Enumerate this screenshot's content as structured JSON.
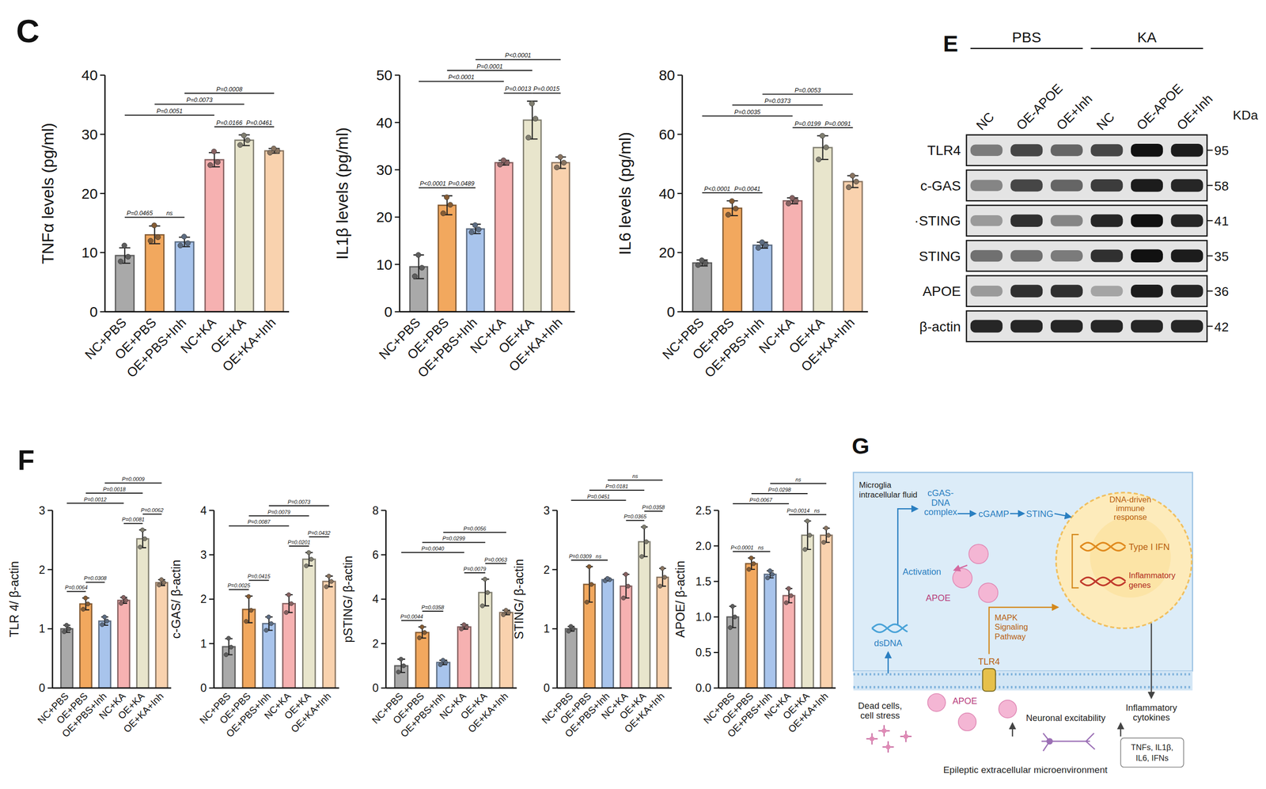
{
  "chart_data": [
    {
      "type": "bar",
      "panel": "C",
      "y_label": "TNFα levels (pg/ml)",
      "categories": [
        "NC+PBS",
        "OE+PBS",
        "OE+PBS+Inh",
        "NC+KA",
        "OE+KA",
        "OE+KA+Inh"
      ],
      "values": [
        9.5,
        13,
        11.8,
        25.7,
        29,
        27.2
      ],
      "errors": [
        1.3,
        1.5,
        0.8,
        1.2,
        0.9,
        0.4
      ],
      "points": [
        [
          8.5,
          9.3,
          11.2
        ],
        [
          12,
          12.6,
          14.6
        ],
        [
          11.2,
          11.6,
          12.7
        ],
        [
          24.8,
          25.3,
          27.1
        ],
        [
          28.2,
          29,
          29.8
        ],
        [
          26.9,
          27.2,
          27.6
        ]
      ],
      "colors": [
        "#a9a9a9",
        "#f2a85e",
        "#a8c4ec",
        "#f6b1b1",
        "#e8e5cc",
        "#f9d2ae"
      ],
      "ylim": [
        0,
        40
      ],
      "yticks": [
        0,
        10,
        20,
        30,
        40
      ],
      "comparisons": [
        {
          "pair": [
            0,
            1
          ],
          "label": "P=0.0465"
        },
        {
          "pair": [
            1,
            2
          ],
          "label": "ns"
        },
        {
          "pair": [
            3,
            4
          ],
          "label": "P=0.0166"
        },
        {
          "pair": [
            4,
            5
          ],
          "label": "P=0.0461"
        },
        {
          "pair": [
            0,
            3
          ],
          "label": "P=0.0051"
        },
        {
          "pair": [
            1,
            4
          ],
          "label": "P=0.0073"
        },
        {
          "pair": [
            2,
            5
          ],
          "label": "P=0.0008"
        }
      ]
    },
    {
      "type": "bar",
      "y_label": "IL1β levels (pg/ml)",
      "categories": [
        "NC+PBS",
        "OE+PBS",
        "OE+PBS+Inh",
        "NC+KA",
        "OE+KA",
        "OE+KA+Inh"
      ],
      "values": [
        9.5,
        22.5,
        17.5,
        31.5,
        40.5,
        31.5
      ],
      "errors": [
        2.5,
        2,
        1,
        0.5,
        4,
        1.2
      ],
      "points": [
        [
          7.5,
          9.3,
          12
        ],
        [
          20.8,
          22.6,
          24.2
        ],
        [
          16.8,
          17.4,
          18.3
        ],
        [
          31.1,
          31.5,
          32
        ],
        [
          36.8,
          40.8,
          44
        ],
        [
          30.5,
          31.5,
          32.7
        ]
      ],
      "colors": [
        "#a9a9a9",
        "#f2a85e",
        "#a8c4ec",
        "#f6b1b1",
        "#e8e5cc",
        "#f9d2ae"
      ],
      "ylim": [
        0,
        50
      ],
      "yticks": [
        0,
        10,
        20,
        30,
        40,
        50
      ],
      "comparisons": [
        {
          "pair": [
            0,
            1
          ],
          "label": "P<0.0001"
        },
        {
          "pair": [
            1,
            2
          ],
          "label": "P=0.0489"
        },
        {
          "pair": [
            3,
            4
          ],
          "label": "P=0.0013"
        },
        {
          "pair": [
            4,
            5
          ],
          "label": "P=0.0015"
        },
        {
          "pair": [
            0,
            3
          ],
          "label": "P<0.0001"
        },
        {
          "pair": [
            1,
            4
          ],
          "label": "P=0.0001"
        },
        {
          "pair": [
            2,
            5
          ],
          "label": "P<0.0001"
        }
      ]
    },
    {
      "type": "bar",
      "y_label": "IL6 levels (pg/ml)",
      "categories": [
        "NC+PBS",
        "OE+PBS",
        "OE+PBS+Inh",
        "NC+KA",
        "OE+KA",
        "OE+KA+Inh"
      ],
      "values": [
        16.5,
        35,
        22.5,
        37.5,
        55.5,
        44
      ],
      "errors": [
        1,
        2.5,
        1,
        1,
        4,
        2
      ],
      "points": [
        [
          15.8,
          16.5,
          17.4
        ],
        [
          32.8,
          34.9,
          37.4
        ],
        [
          21.6,
          22.5,
          23.5
        ],
        [
          36.6,
          37.5,
          38.5
        ],
        [
          51.5,
          55.6,
          59.5
        ],
        [
          42.1,
          44,
          46
        ]
      ],
      "colors": [
        "#a9a9a9",
        "#f2a85e",
        "#a8c4ec",
        "#f6b1b1",
        "#e8e5cc",
        "#f9d2ae"
      ],
      "ylim": [
        0,
        80
      ],
      "yticks": [
        0,
        20,
        40,
        60,
        80
      ],
      "comparisons": [
        {
          "pair": [
            0,
            1
          ],
          "label": "P<0.0001"
        },
        {
          "pair": [
            1,
            2
          ],
          "label": "P=0.0041"
        },
        {
          "pair": [
            3,
            4
          ],
          "label": "P=0.0199"
        },
        {
          "pair": [
            4,
            5
          ],
          "label": "P=0.0091"
        },
        {
          "pair": [
            0,
            3
          ],
          "label": "P=0.0035"
        },
        {
          "pair": [
            1,
            4
          ],
          "label": "P=0.0373"
        },
        {
          "pair": [
            2,
            5
          ],
          "label": "P=0.0053"
        }
      ]
    },
    {
      "type": "bar",
      "panel": "F",
      "y_label": "TLR 4/ β-actin",
      "categories": [
        "NC+PBS",
        "OE+PBS",
        "OE+PBS+Inh",
        "NC+KA",
        "OE+KA",
        "OE+KA+Inh"
      ],
      "values": [
        1.0,
        1.42,
        1.13,
        1.48,
        2.52,
        1.78
      ],
      "errors": [
        0.06,
        0.1,
        0.07,
        0.05,
        0.15,
        0.05
      ],
      "points": [
        [
          0.95,
          1,
          1.06
        ],
        [
          1.33,
          1.42,
          1.52
        ],
        [
          1.07,
          1.13,
          1.2
        ],
        [
          1.43,
          1.48,
          1.53
        ],
        [
          2.38,
          2.52,
          2.67
        ],
        [
          1.74,
          1.78,
          1.83
        ]
      ],
      "colors": [
        "#a9a9a9",
        "#f2a85e",
        "#a8c4ec",
        "#f6b1b1",
        "#e8e5cc",
        "#f9d2ae"
      ],
      "ylim": [
        0,
        3
      ],
      "yticks": [
        0,
        1,
        2,
        3
      ],
      "comparisons": [
        {
          "pair": [
            0,
            1
          ],
          "label": "P=0.0064"
        },
        {
          "pair": [
            1,
            2
          ],
          "label": "P=0.0308"
        },
        {
          "pair": [
            3,
            4
          ],
          "label": "P=0.0081"
        },
        {
          "pair": [
            4,
            5
          ],
          "label": "P=0.0062"
        },
        {
          "pair": [
            0,
            3
          ],
          "label": "P=0.0012"
        },
        {
          "pair": [
            1,
            4
          ],
          "label": "P=0.0018"
        },
        {
          "pair": [
            2,
            5
          ],
          "label": "P=0.0009"
        }
      ]
    },
    {
      "type": "bar",
      "y_label": "c-GAS/ β-actin",
      "categories": [
        "NC+PBS",
        "OE+PBS",
        "OE+PBS+Inh",
        "NC+KA",
        "OE+KA",
        "OE+KA+Inh"
      ],
      "values": [
        0.93,
        1.77,
        1.45,
        1.9,
        2.9,
        2.4
      ],
      "errors": [
        0.18,
        0.3,
        0.15,
        0.2,
        0.15,
        0.12
      ],
      "points": [
        [
          0.75,
          0.92,
          1.12
        ],
        [
          1.5,
          1.75,
          2.06
        ],
        [
          1.3,
          1.45,
          1.6
        ],
        [
          1.7,
          1.9,
          2.1
        ],
        [
          2.75,
          2.9,
          3.05
        ],
        [
          2.28,
          2.4,
          2.52
        ]
      ],
      "colors": [
        "#a9a9a9",
        "#f2a85e",
        "#a8c4ec",
        "#f6b1b1",
        "#e8e5cc",
        "#f9d2ae"
      ],
      "ylim": [
        0,
        4
      ],
      "yticks": [
        0,
        1,
        2,
        3,
        4
      ],
      "comparisons": [
        {
          "pair": [
            0,
            1
          ],
          "label": "P=0.0025"
        },
        {
          "pair": [
            1,
            2
          ],
          "label": "P=0.0415"
        },
        {
          "pair": [
            3,
            4
          ],
          "label": "P=0.0201"
        },
        {
          "pair": [
            4,
            5
          ],
          "label": "P=0.0432"
        },
        {
          "pair": [
            0,
            3
          ],
          "label": "P=0.0087"
        },
        {
          "pair": [
            1,
            4
          ],
          "label": "P=0.0079"
        },
        {
          "pair": [
            2,
            5
          ],
          "label": "P=0.0073"
        }
      ]
    },
    {
      "type": "bar",
      "y_label": "pSTING/ β-actin",
      "categories": [
        "NC+PBS",
        "OE+PBS",
        "OE+PBS+Inh",
        "NC+KA",
        "OE+KA",
        "OE+KA+Inh"
      ],
      "values": [
        1.0,
        2.5,
        1.15,
        2.75,
        4.3,
        3.4
      ],
      "errors": [
        0.3,
        0.25,
        0.1,
        0.1,
        0.6,
        0.1
      ],
      "points": [
        [
          0.72,
          1,
          1.3
        ],
        [
          2.26,
          2.5,
          2.75
        ],
        [
          1.05,
          1.15,
          1.25
        ],
        [
          2.66,
          2.75,
          2.85
        ],
        [
          3.7,
          4.3,
          4.9
        ],
        [
          3.3,
          3.4,
          3.5
        ]
      ],
      "colors": [
        "#a9a9a9",
        "#f2a85e",
        "#a8c4ec",
        "#f6b1b1",
        "#e8e5cc",
        "#f9d2ae"
      ],
      "ylim": [
        0,
        8
      ],
      "yticks": [
        0,
        2,
        4,
        6,
        8
      ],
      "comparisons": [
        {
          "pair": [
            0,
            1
          ],
          "label": "P=0.0044"
        },
        {
          "pair": [
            1,
            2
          ],
          "label": "P=0.0358"
        },
        {
          "pair": [
            3,
            4
          ],
          "label": "P=0.0079"
        },
        {
          "pair": [
            4,
            5
          ],
          "label": "P=0.0063"
        },
        {
          "pair": [
            0,
            3
          ],
          "label": "P=0.0040"
        },
        {
          "pair": [
            1,
            4
          ],
          "label": "P=0.0299"
        },
        {
          "pair": [
            2,
            5
          ],
          "label": "P=0.0056"
        }
      ]
    },
    {
      "type": "bar",
      "y_label": "STING/ β-actin",
      "categories": [
        "NC+PBS",
        "OE+PBS",
        "OE+PBS+Inh",
        "NC+KA",
        "OE+KA",
        "OE+KA+Inh"
      ],
      "values": [
        1.0,
        1.75,
        1.83,
        1.72,
        2.47,
        1.87
      ],
      "errors": [
        0.04,
        0.3,
        0.02,
        0.2,
        0.25,
        0.15
      ],
      "points": [
        [
          0.96,
          1,
          1.04
        ],
        [
          1.45,
          1.75,
          2.05
        ],
        [
          1.81,
          1.83,
          1.85
        ],
        [
          1.52,
          1.72,
          1.92
        ],
        [
          2.22,
          2.47,
          2.72
        ],
        [
          1.72,
          1.87,
          2.02
        ]
      ],
      "colors": [
        "#a9a9a9",
        "#f2a85e",
        "#a8c4ec",
        "#f6b1b1",
        "#e8e5cc",
        "#f9d2ae"
      ],
      "ylim": [
        0,
        3
      ],
      "yticks": [
        0,
        1,
        2,
        3
      ],
      "comparisons": [
        {
          "pair": [
            0,
            1
          ],
          "label": "P=0.0309"
        },
        {
          "pair": [
            1,
            2
          ],
          "label": "ns"
        },
        {
          "pair": [
            3,
            4
          ],
          "label": "P=0.0365"
        },
        {
          "pair": [
            4,
            5
          ],
          "label": "P=0.0358"
        },
        {
          "pair": [
            0,
            3
          ],
          "label": "P=0.0451"
        },
        {
          "pair": [
            1,
            4
          ],
          "label": "P=0.0181"
        },
        {
          "pair": [
            2,
            5
          ],
          "label": "ns"
        }
      ]
    },
    {
      "type": "bar",
      "y_label": "APOE/ β-actin",
      "categories": [
        "NC+PBS",
        "OE+PBS",
        "OE+PBS+Inh",
        "NC+KA",
        "OE+KA",
        "OE+KA+Inh"
      ],
      "values": [
        1.0,
        1.75,
        1.6,
        1.3,
        2.15,
        2.15
      ],
      "errors": [
        0.15,
        0.08,
        0.05,
        0.1,
        0.2,
        0.1
      ],
      "points": [
        [
          0.85,
          1,
          1.15
        ],
        [
          1.67,
          1.75,
          1.83
        ],
        [
          1.55,
          1.6,
          1.65
        ],
        [
          1.2,
          1.3,
          1.4
        ],
        [
          1.95,
          2.15,
          2.35
        ],
        [
          2.05,
          2.15,
          2.25
        ]
      ],
      "colors": [
        "#a9a9a9",
        "#f2a85e",
        "#a8c4ec",
        "#f6b1b1",
        "#e8e5cc",
        "#f9d2ae"
      ],
      "ylim": [
        0,
        2.5
      ],
      "yticks": [
        {
          "value": 0,
          "label": "0.0"
        },
        0.5,
        {
          "value": 1,
          "label": "1.0"
        },
        1.5,
        {
          "value": 2,
          "label": "2.0"
        },
        2.5
      ],
      "comparisons": [
        {
          "pair": [
            0,
            1
          ],
          "label": "P<0.0001"
        },
        {
          "pair": [
            1,
            2
          ],
          "label": "ns"
        },
        {
          "pair": [
            3,
            4
          ],
          "label": "P=0.0014"
        },
        {
          "pair": [
            4,
            5
          ],
          "label": "ns"
        },
        {
          "pair": [
            0,
            3
          ],
          "label": "P=0.0067"
        },
        {
          "pair": [
            1,
            4
          ],
          "label": "P=0.0298"
        },
        {
          "pair": [
            2,
            5
          ],
          "label": "ns"
        }
      ]
    }
  ],
  "blot": {
    "panel": "E",
    "groups": [
      "PBS",
      "KA"
    ],
    "lanes": [
      "NC",
      "OE-APOE",
      "OE+Inh",
      "NC",
      "OE-APOE",
      "OE+Inh"
    ],
    "unit": "KDa",
    "rows": [
      {
        "label": "TLR4",
        "kda": 95,
        "band_intensity": [
          0.5,
          0.75,
          0.6,
          0.75,
          1,
          0.95
        ]
      },
      {
        "label": "c-GAS",
        "kda": 58,
        "band_intensity": [
          0.45,
          0.75,
          0.6,
          0.8,
          0.95,
          0.9
        ]
      },
      {
        "label": "·STING",
        "kda": 41,
        "band_intensity": [
          0.35,
          0.85,
          0.45,
          0.9,
          1,
          0.9
        ]
      },
      {
        "label": "STING",
        "kda": 35,
        "band_intensity": [
          0.55,
          0.55,
          0.5,
          0.85,
          1,
          0.95
        ]
      },
      {
        "label": "APOE",
        "kda": 36,
        "band_intensity": [
          0.35,
          0.85,
          0.85,
          0.3,
          0.95,
          0.9
        ]
      },
      {
        "label": "β-actin",
        "kda": 42,
        "band_intensity": [
          0.9,
          0.9,
          0.9,
          0.9,
          0.9,
          0.9
        ]
      }
    ]
  },
  "diagram": {
    "panel": "G",
    "compartment": [
      "Microglia",
      "intracellular fluid"
    ],
    "complex": [
      "cGAS-",
      "DNA",
      "complex"
    ],
    "messenger": "cGAMP",
    "sensor": "STING",
    "response": [
      "DNA-driven",
      "immune",
      "response"
    ],
    "ifn": "Type I IFN",
    "genes": [
      "Inflammatory",
      "genes"
    ],
    "activation": "Activation",
    "apoe_inside": "APOE",
    "mapk": [
      "MAPK",
      "Signaling",
      "Pathway"
    ],
    "dsdna": "dsDNA",
    "receptor": "TLR4",
    "apoe_outside": "APOE",
    "dead_cells": [
      "Dead cells,",
      "cell stress"
    ],
    "excitability": "Neuronal excitability",
    "environment": "Epileptic extracellular microenvironment",
    "cytokines": [
      "Inflammatory",
      "cytokines"
    ],
    "cytokine_list": [
      "TNFs, IL1β,",
      "IL6, IFNs"
    ]
  }
}
